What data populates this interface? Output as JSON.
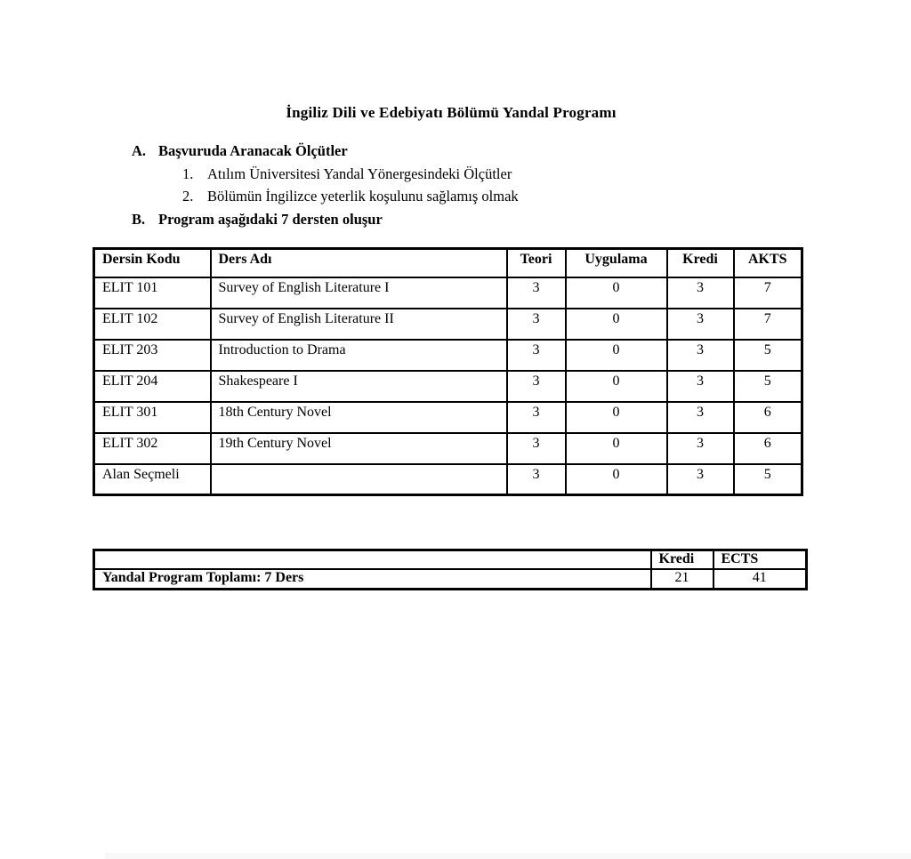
{
  "document": {
    "title": "İngiliz Dili ve Edebiyatı Bölümü Yandal Programı",
    "section_a": {
      "marker": "A.",
      "text": "Başvuruda Aranacak Ölçütler"
    },
    "criteria": [
      {
        "marker": "1.",
        "text": "Atılım Üniversitesi Yandal Yönergesindeki Ölçütler"
      },
      {
        "marker": "2.",
        "text": "Bölümün İngilizce yeterlik koşulunu sağlamış olmak"
      }
    ],
    "section_b": {
      "marker": "B.",
      "text": "Program aşağıdaki 7 dersten oluşur"
    }
  },
  "course_table": {
    "headers": [
      "Dersin Kodu",
      "Ders Adı",
      "Teori",
      "Uygulama",
      "Kredi",
      "AKTS"
    ],
    "rows": [
      [
        "ELIT 101",
        "Survey of English Literature I",
        "3",
        "0",
        "3",
        "7"
      ],
      [
        "ELIT 102",
        "Survey of English Literature II",
        "3",
        "0",
        "3",
        "7"
      ],
      [
        "ELIT 203",
        "Introduction to Drama",
        "3",
        "0",
        "3",
        "5"
      ],
      [
        "ELIT 204",
        "Shakespeare I",
        "3",
        "0",
        "3",
        "5"
      ],
      [
        "ELIT 301",
        "18th Century Novel",
        "3",
        "0",
        "3",
        "6"
      ],
      [
        "ELIT 302",
        "19th Century Novel",
        "3",
        "0",
        "3",
        "6"
      ],
      [
        "Alan Seçmeli",
        "",
        "3",
        "0",
        "3",
        "5"
      ]
    ]
  },
  "summary_table": {
    "kredi_header": "Kredi",
    "ects_header": "ECTS",
    "total_label": "Yandal Program Toplamı: 7 Ders",
    "kredi_total": "21",
    "ects_total": "41"
  }
}
